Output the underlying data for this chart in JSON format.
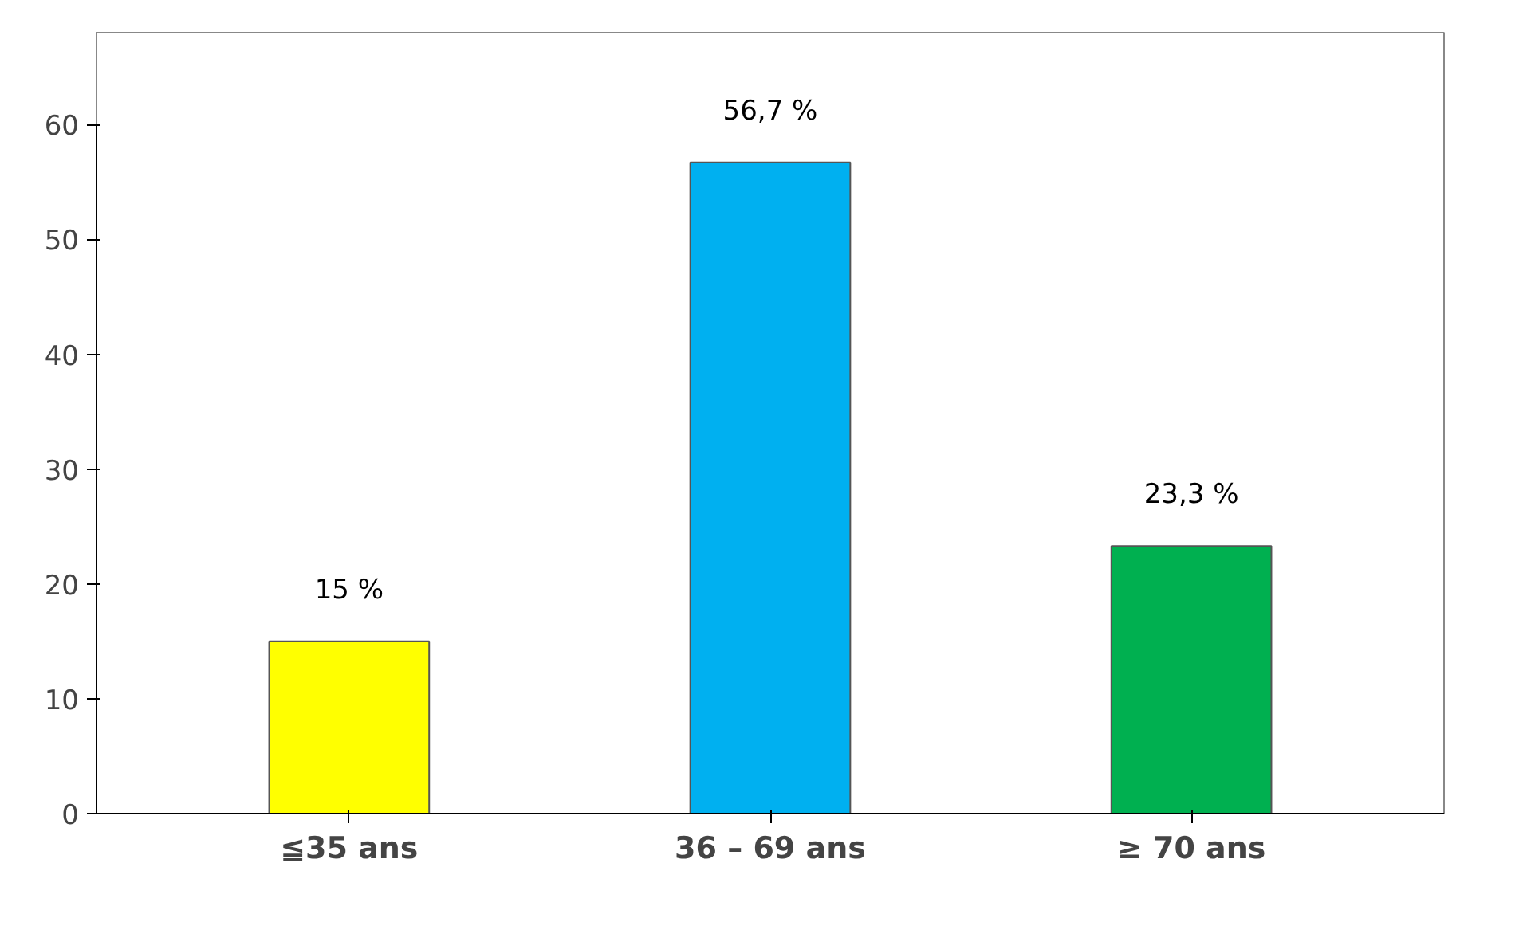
{
  "chart_data": {
    "type": "bar",
    "categories": [
      "≦35 ans",
      "36 – 69 ans",
      "≥ 70 ans"
    ],
    "values": [
      15,
      56.7,
      23.3
    ],
    "colors": [
      "#ffff00",
      "#00b0f0",
      "#00b050"
    ],
    "value_labels": [
      "15 %",
      "56,7 %",
      "23,3 %"
    ],
    "ylim": [
      0,
      60
    ],
    "yticks": [
      0,
      10,
      20,
      30,
      40,
      50,
      60
    ],
    "grid": false
  }
}
